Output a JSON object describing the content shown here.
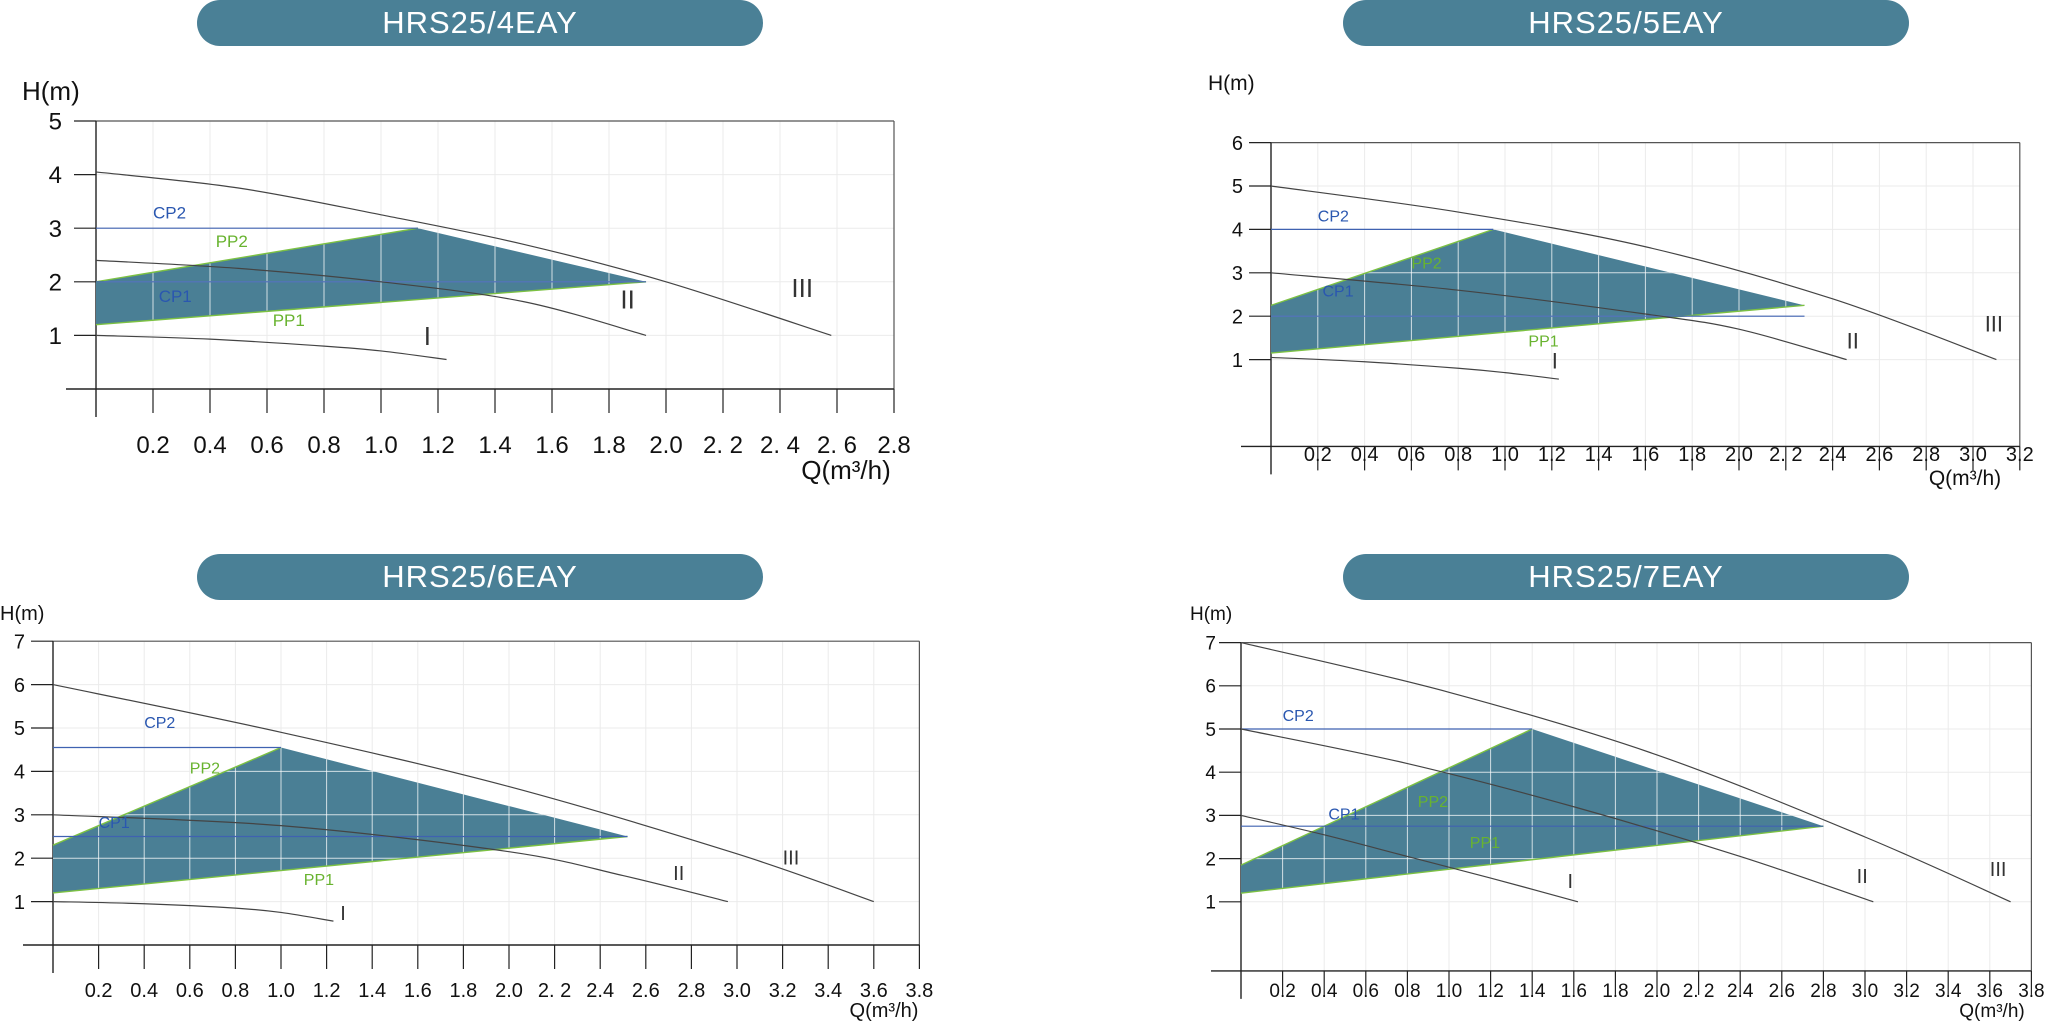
{
  "colors": {
    "pill": "#4a8096",
    "fill": "#4a7f95",
    "curve": "#444444",
    "cp_line": "#3f62b1",
    "pp_line": "#7cc143",
    "cp_text": "#2a57b0",
    "pp_text": "#68b32f",
    "grid": "#ebebeb",
    "axis": "#222222"
  },
  "chart_data": [
    {
      "id": "c1",
      "type": "line",
      "title": "HRS25/4EAY",
      "ylabel": "H(m)",
      "xlabel": "Q(m³/h)",
      "xlim": [
        0,
        2.8
      ],
      "ylim": [
        0,
        5
      ],
      "x_ticks": [
        "0.2",
        "0.4",
        "0.6",
        "0.8",
        "1.0",
        "1.2",
        "1.4",
        "1.6",
        "1.8",
        "2.0",
        "2. 2",
        "2. 4",
        "2. 6",
        "2.8"
      ],
      "y_ticks": [
        "1",
        "2",
        "3",
        "4",
        "5"
      ],
      "series": [
        {
          "name": "I",
          "x": [
            0,
            0.4,
            0.8,
            1.0,
            1.23
          ],
          "y": [
            1.0,
            0.93,
            0.8,
            0.71,
            0.55
          ],
          "label_at": [
            1.15,
            0.82
          ]
        },
        {
          "name": "II",
          "x": [
            0,
            0.5,
            1.0,
            1.5,
            1.93
          ],
          "y": [
            2.4,
            2.25,
            2.0,
            1.63,
            1.0
          ],
          "label_at": [
            1.84,
            1.5
          ]
        },
        {
          "name": "III",
          "x": [
            0,
            0.5,
            1.0,
            1.5,
            2.0,
            2.58
          ],
          "y": [
            4.05,
            3.75,
            3.25,
            2.7,
            2.0,
            1.0
          ],
          "label_at": [
            2.44,
            1.72
          ]
        }
      ],
      "control": {
        "cp1": {
          "label": "CP1",
          "level": 2.0,
          "label_at": [
            0.22,
            1.62
          ]
        },
        "cp2": {
          "label": "CP2",
          "level": 3.0,
          "label_at": [
            0.2,
            3.18
          ]
        },
        "pp1": {
          "label": "PP1",
          "label_at": [
            0.62,
            1.18
          ]
        },
        "pp2": {
          "label": "PP2",
          "label_at": [
            0.42,
            2.65
          ]
        },
        "region_q": [
          0.0,
          1.13,
          1.93
        ],
        "region_h": [
          2.0,
          3.0,
          2.0
        ],
        "region_low_h": [
          1.2,
          2.0
        ],
        "grid_step": 0.2
      }
    },
    {
      "id": "c2",
      "type": "line",
      "title": "HRS25/5EAY",
      "ylabel": "H(m)",
      "xlabel": "Q(m³/h)",
      "xlim": [
        0,
        3.2
      ],
      "ylim": [
        -1,
        6
      ],
      "x_ticks": [
        "0.2",
        "0.4",
        "0.6",
        "0.8",
        "1.0",
        "1.2",
        "1.4",
        "1.6",
        "1.8",
        "2.0",
        "2. 2",
        "2.4",
        "2.6",
        "2.8",
        "3.0",
        "3.2"
      ],
      "y_ticks": [
        "1",
        "2",
        "3",
        "4",
        "5",
        "6"
      ],
      "series": [
        {
          "name": "I",
          "x": [
            0,
            0.4,
            0.8,
            1.0,
            1.23
          ],
          "y": [
            1.05,
            0.95,
            0.8,
            0.7,
            0.55
          ],
          "label_at": [
            1.2,
            0.8
          ]
        },
        {
          "name": "II",
          "x": [
            0,
            0.8,
            1.6,
            2.0,
            2.46
          ],
          "y": [
            3.0,
            2.6,
            2.05,
            1.7,
            1.0
          ],
          "label_at": [
            2.46,
            1.26
          ]
        },
        {
          "name": "III",
          "x": [
            0,
            0.8,
            1.6,
            2.4,
            3.1
          ],
          "y": [
            5.0,
            4.4,
            3.6,
            2.4,
            1.0
          ],
          "label_at": [
            3.05,
            1.65
          ]
        }
      ],
      "control": {
        "cp1": {
          "label": "CP1",
          "level": 2.0,
          "label_at": [
            0.22,
            2.45
          ]
        },
        "cp2": {
          "label": "CP2",
          "level": 4.0,
          "label_at": [
            0.2,
            4.18
          ]
        },
        "pp1": {
          "label": "PP1",
          "label_at": [
            1.1,
            1.3
          ]
        },
        "pp2": {
          "label": "PP2",
          "label_at": [
            0.6,
            3.1
          ]
        },
        "region_q": [
          0.0,
          0.95,
          2.28
        ],
        "region_h": [
          2.25,
          4.0,
          2.25
        ],
        "region_low_h": [
          1.15,
          2.25
        ],
        "grid_step": 0.2
      }
    },
    {
      "id": "c3",
      "type": "line",
      "title": "HRS25/6EAY",
      "ylabel": "H(m)",
      "xlabel": "Q(m³/h)",
      "xlim": [
        0,
        3.8
      ],
      "ylim": [
        0,
        7
      ],
      "x_ticks": [
        "0.2",
        "0.4",
        "0.6",
        "0.8",
        "1.0",
        "1.2",
        "1.4",
        "1.6",
        "1.8",
        "2.0",
        "2. 2",
        "2.4",
        "2.6",
        "2.8",
        "3.0",
        "3.2",
        "3.4",
        "3.6",
        "3.8"
      ],
      "y_ticks": [
        "1",
        "2",
        "3",
        "4",
        "5",
        "6",
        "7"
      ],
      "series": [
        {
          "name": "I",
          "x": [
            0,
            0.4,
            0.8,
            1.0,
            1.23
          ],
          "y": [
            1.0,
            0.95,
            0.85,
            0.75,
            0.55
          ],
          "label_at": [
            1.26,
            0.58
          ]
        },
        {
          "name": "II",
          "x": [
            0,
            1.0,
            2.0,
            2.5,
            2.96
          ],
          "y": [
            3.0,
            2.75,
            2.15,
            1.6,
            1.0
          ],
          "label_at": [
            2.72,
            1.5
          ]
        },
        {
          "name": "III",
          "x": [
            0,
            1.0,
            2.0,
            3.0,
            3.6
          ],
          "y": [
            6.0,
            4.9,
            3.65,
            2.1,
            1.0
          ],
          "label_at": [
            3.2,
            1.85
          ]
        }
      ],
      "control": {
        "cp1": {
          "label": "CP1",
          "level": 2.5,
          "label_at": [
            0.2,
            2.7
          ]
        },
        "cp2": {
          "label": "CP2",
          "level": 4.55,
          "label_at": [
            0.4,
            5.0
          ]
        },
        "pp1": {
          "label": "PP1",
          "label_at": [
            1.1,
            1.38
          ]
        },
        "pp2": {
          "label": "PP2",
          "label_at": [
            0.6,
            3.95
          ]
        },
        "region_q": [
          0.0,
          1.0,
          2.52
        ],
        "region_h": [
          2.3,
          4.55,
          2.5
        ],
        "region_low_h": [
          1.2,
          2.5
        ],
        "grid_step": 0.2
      }
    },
    {
      "id": "c4",
      "type": "line",
      "title": "HRS25/7EAY",
      "ylabel": "H(m)",
      "xlabel": "Q(m³/h)",
      "xlim": [
        0,
        3.8
      ],
      "ylim": [
        -0.6,
        7
      ],
      "x_ticks": [
        "0.2",
        "0.4",
        "0.6",
        "0.8",
        "1.0",
        "1.2",
        "1.4",
        "1.6",
        "1.8",
        "2.0",
        "2. 2",
        "2.4",
        "2.6",
        "2.8",
        "3.0",
        "3.2",
        "3.4",
        "3.6",
        "3.8"
      ],
      "y_ticks": [
        "1",
        "2",
        "3",
        "4",
        "5",
        "6",
        "7"
      ],
      "series": [
        {
          "name": "I",
          "x": [
            0,
            0.4,
            0.8,
            1.2,
            1.62
          ],
          "y": [
            3.0,
            2.55,
            2.05,
            1.55,
            1.0
          ],
          "label_at": [
            1.57,
            1.32
          ]
        },
        {
          "name": "II",
          "x": [
            0,
            0.8,
            1.6,
            2.4,
            3.04
          ],
          "y": [
            5.0,
            4.2,
            3.2,
            2.05,
            1.0
          ],
          "label_at": [
            2.96,
            1.44
          ]
        },
        {
          "name": "III",
          "x": [
            0,
            1.0,
            2.0,
            3.0,
            3.7
          ],
          "y": [
            7.0,
            5.85,
            4.4,
            2.5,
            1.0
          ],
          "label_at": [
            3.6,
            1.6
          ]
        }
      ],
      "control": {
        "cp1": {
          "label": "CP1",
          "level": 2.75,
          "label_at": [
            0.42,
            2.9
          ]
        },
        "cp2": {
          "label": "CP2",
          "level": 5.0,
          "label_at": [
            0.2,
            5.18
          ]
        },
        "pp1": {
          "label": "PP1",
          "label_at": [
            1.1,
            2.25
          ]
        },
        "pp2": {
          "label": "PP2",
          "label_at": [
            0.85,
            3.2
          ]
        },
        "region_q": [
          0.0,
          1.4,
          2.8
        ],
        "region_h": [
          1.85,
          5.0,
          2.75
        ],
        "region_low_h": [
          1.2,
          2.75
        ],
        "grid_step": 0.2
      }
    }
  ]
}
